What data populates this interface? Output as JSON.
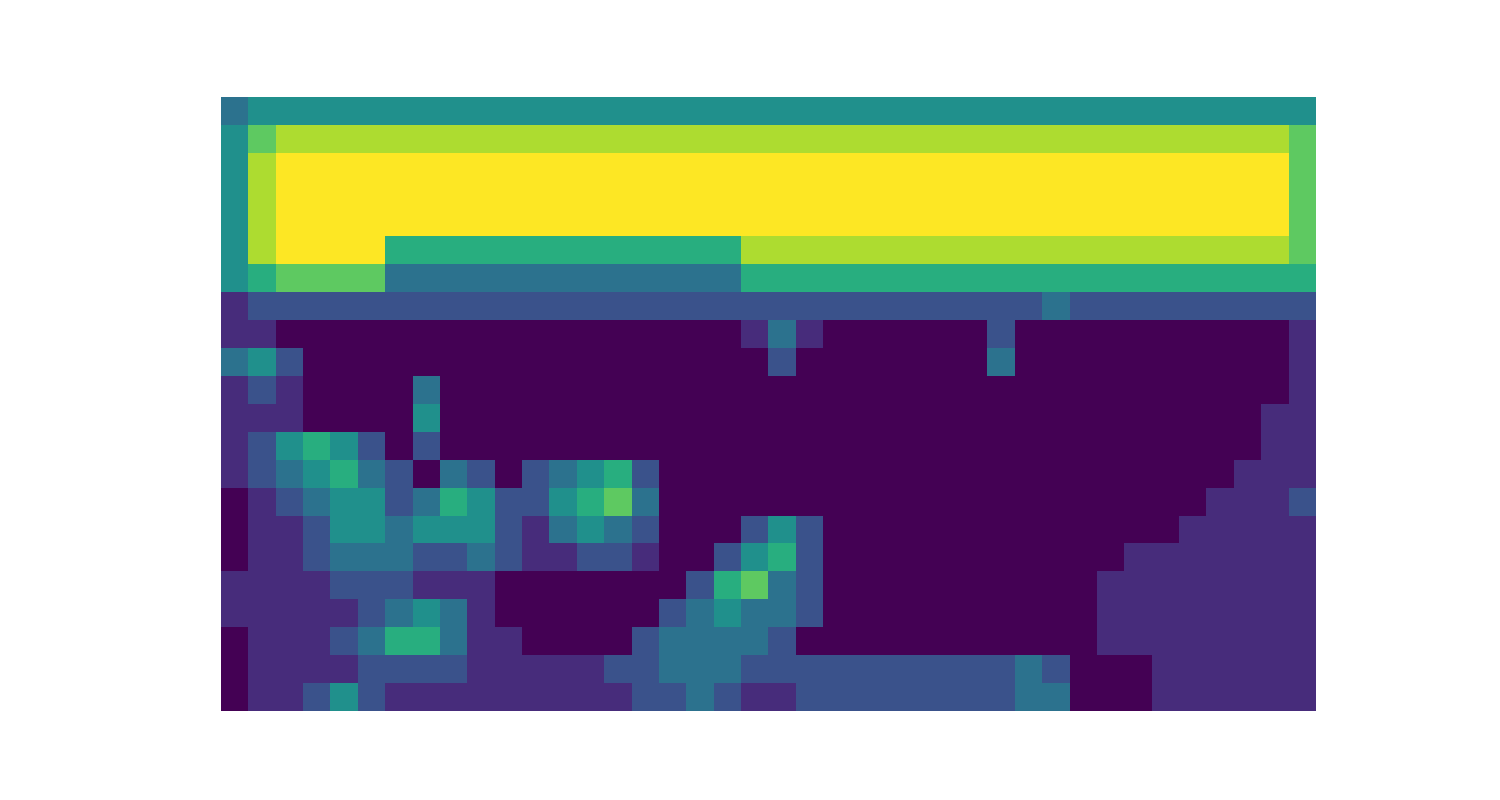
{
  "chart_data": {
    "type": "heatmap",
    "tick_labels": false,
    "cells": [
      [
        4,
        5,
        5,
        5,
        5,
        5,
        5,
        5,
        5,
        5,
        5,
        5,
        5,
        5,
        5,
        5,
        5,
        5,
        5,
        5,
        5,
        5,
        5,
        5,
        5,
        5,
        5,
        5,
        5,
        5,
        5,
        5,
        5,
        5,
        5,
        5,
        5,
        5,
        5,
        5
      ],
      [
        5,
        7,
        8,
        8,
        8,
        8,
        8,
        8,
        8,
        8,
        8,
        8,
        8,
        8,
        8,
        8,
        8,
        8,
        8,
        8,
        8,
        8,
        8,
        8,
        8,
        8,
        8,
        8,
        8,
        8,
        8,
        8,
        8,
        8,
        8,
        8,
        8,
        8,
        8,
        7
      ],
      [
        5,
        8,
        9,
        9,
        9,
        9,
        9,
        9,
        9,
        9,
        9,
        9,
        9,
        9,
        9,
        9,
        9,
        9,
        9,
        9,
        9,
        9,
        9,
        9,
        9,
        9,
        9,
        9,
        9,
        9,
        9,
        9,
        9,
        9,
        9,
        9,
        9,
        9,
        9,
        7
      ],
      [
        5,
        8,
        9,
        9,
        9,
        9,
        9,
        9,
        9,
        9,
        9,
        9,
        9,
        9,
        9,
        9,
        9,
        9,
        9,
        9,
        9,
        9,
        9,
        9,
        9,
        9,
        9,
        9,
        9,
        9,
        9,
        9,
        9,
        9,
        9,
        9,
        9,
        9,
        9,
        7
      ],
      [
        5,
        8,
        9,
        9,
        9,
        9,
        9,
        9,
        9,
        9,
        9,
        9,
        9,
        9,
        9,
        9,
        9,
        9,
        9,
        9,
        9,
        9,
        9,
        9,
        9,
        9,
        9,
        9,
        9,
        9,
        9,
        9,
        9,
        9,
        9,
        9,
        9,
        9,
        9,
        7
      ],
      [
        5,
        8,
        9,
        9,
        9,
        9,
        6,
        6,
        6,
        6,
        6,
        6,
        6,
        6,
        6,
        6,
        6,
        6,
        6,
        8,
        8,
        8,
        8,
        8,
        8,
        8,
        8,
        8,
        8,
        8,
        8,
        8,
        8,
        8,
        8,
        8,
        8,
        8,
        8,
        7
      ],
      [
        5,
        6,
        7,
        7,
        7,
        7,
        4,
        4,
        4,
        4,
        4,
        4,
        4,
        4,
        4,
        4,
        4,
        4,
        4,
        6,
        6,
        6,
        6,
        6,
        6,
        6,
        6,
        6,
        6,
        6,
        6,
        6,
        6,
        6,
        6,
        6,
        6,
        6,
        6,
        6
      ],
      [
        2,
        3,
        3,
        3,
        3,
        3,
        3,
        3,
        3,
        3,
        3,
        3,
        3,
        3,
        3,
        3,
        3,
        3,
        3,
        3,
        3,
        3,
        3,
        3,
        3,
        3,
        3,
        3,
        3,
        3,
        4,
        3,
        3,
        3,
        3,
        3,
        3,
        3,
        3,
        3
      ],
      [
        2,
        2,
        1,
        1,
        1,
        1,
        1,
        1,
        1,
        1,
        1,
        1,
        1,
        1,
        1,
        1,
        1,
        1,
        1,
        2,
        4,
        2,
        1,
        1,
        1,
        1,
        1,
        1,
        3,
        1,
        1,
        1,
        1,
        1,
        1,
        1,
        1,
        1,
        1,
        2
      ],
      [
        4,
        5,
        3,
        1,
        1,
        1,
        1,
        1,
        1,
        1,
        1,
        1,
        1,
        1,
        1,
        1,
        1,
        1,
        1,
        1,
        3,
        1,
        1,
        1,
        1,
        1,
        1,
        1,
        4,
        1,
        1,
        1,
        1,
        1,
        1,
        1,
        1,
        1,
        1,
        2
      ],
      [
        2,
        3,
        2,
        1,
        1,
        1,
        1,
        4,
        1,
        1,
        1,
        1,
        1,
        1,
        1,
        1,
        1,
        1,
        1,
        1,
        1,
        1,
        1,
        1,
        1,
        1,
        1,
        1,
        1,
        1,
        1,
        1,
        1,
        1,
        1,
        1,
        1,
        1,
        1,
        2
      ],
      [
        2,
        2,
        2,
        1,
        1,
        1,
        1,
        5,
        1,
        1,
        1,
        1,
        1,
        1,
        1,
        1,
        1,
        1,
        1,
        1,
        1,
        1,
        1,
        1,
        1,
        1,
        1,
        1,
        1,
        1,
        1,
        1,
        1,
        1,
        1,
        1,
        1,
        1,
        2,
        2
      ],
      [
        2,
        3,
        5,
        6,
        5,
        3,
        1,
        3,
        1,
        1,
        1,
        1,
        1,
        1,
        1,
        1,
        1,
        1,
        1,
        1,
        1,
        1,
        1,
        1,
        1,
        1,
        1,
        1,
        1,
        1,
        1,
        1,
        1,
        1,
        1,
        1,
        1,
        1,
        2,
        2
      ],
      [
        2,
        3,
        4,
        5,
        6,
        4,
        3,
        1,
        4,
        3,
        1,
        3,
        4,
        5,
        6,
        3,
        1,
        1,
        1,
        1,
        1,
        1,
        1,
        1,
        1,
        1,
        1,
        1,
        1,
        1,
        1,
        1,
        1,
        1,
        1,
        1,
        1,
        2,
        2,
        2
      ],
      [
        1,
        2,
        3,
        4,
        5,
        5,
        3,
        4,
        6,
        5,
        3,
        3,
        5,
        6,
        7,
        4,
        1,
        1,
        1,
        1,
        1,
        1,
        1,
        1,
        1,
        1,
        1,
        1,
        1,
        1,
        1,
        1,
        1,
        1,
        1,
        1,
        2,
        2,
        2,
        3
      ],
      [
        1,
        2,
        2,
        3,
        5,
        5,
        4,
        5,
        5,
        5,
        3,
        2,
        4,
        5,
        4,
        3,
        1,
        1,
        1,
        3,
        5,
        3,
        1,
        1,
        1,
        1,
        1,
        1,
        1,
        1,
        1,
        1,
        1,
        1,
        1,
        2,
        2,
        2,
        2,
        2
      ],
      [
        1,
        2,
        2,
        3,
        4,
        4,
        4,
        3,
        3,
        4,
        3,
        2,
        2,
        3,
        3,
        2,
        1,
        1,
        3,
        5,
        6,
        3,
        1,
        1,
        1,
        1,
        1,
        1,
        1,
        1,
        1,
        1,
        1,
        2,
        2,
        2,
        2,
        2,
        2,
        2
      ],
      [
        2,
        2,
        2,
        2,
        3,
        3,
        3,
        2,
        2,
        2,
        1,
        1,
        1,
        1,
        1,
        1,
        1,
        3,
        6,
        7,
        4,
        3,
        1,
        1,
        1,
        1,
        1,
        1,
        1,
        1,
        1,
        1,
        2,
        2,
        2,
        2,
        2,
        2,
        2,
        2
      ],
      [
        2,
        2,
        2,
        2,
        2,
        3,
        4,
        5,
        4,
        2,
        1,
        1,
        1,
        1,
        1,
        1,
        3,
        4,
        5,
        4,
        4,
        3,
        1,
        1,
        1,
        1,
        1,
        1,
        1,
        1,
        1,
        1,
        2,
        2,
        2,
        2,
        2,
        2,
        2,
        2
      ],
      [
        1,
        2,
        2,
        2,
        3,
        4,
        6,
        6,
        4,
        2,
        2,
        1,
        1,
        1,
        1,
        3,
        4,
        4,
        4,
        4,
        3,
        1,
        1,
        1,
        1,
        1,
        1,
        1,
        1,
        1,
        1,
        1,
        2,
        2,
        2,
        2,
        2,
        2,
        2,
        2
      ],
      [
        1,
        2,
        2,
        2,
        2,
        3,
        3,
        3,
        3,
        2,
        2,
        2,
        2,
        2,
        3,
        3,
        4,
        4,
        4,
        3,
        3,
        3,
        3,
        3,
        3,
        3,
        3,
        3,
        3,
        4,
        3,
        1,
        1,
        1,
        2,
        2,
        2,
        2,
        2,
        2
      ],
      [
        1,
        2,
        2,
        3,
        5,
        3,
        2,
        2,
        2,
        2,
        2,
        2,
        2,
        2,
        2,
        3,
        3,
        4,
        3,
        2,
        2,
        3,
        3,
        3,
        3,
        3,
        3,
        3,
        3,
        4,
        4,
        1,
        1,
        1,
        2,
        2,
        2,
        2,
        2,
        2
      ]
    ]
  }
}
